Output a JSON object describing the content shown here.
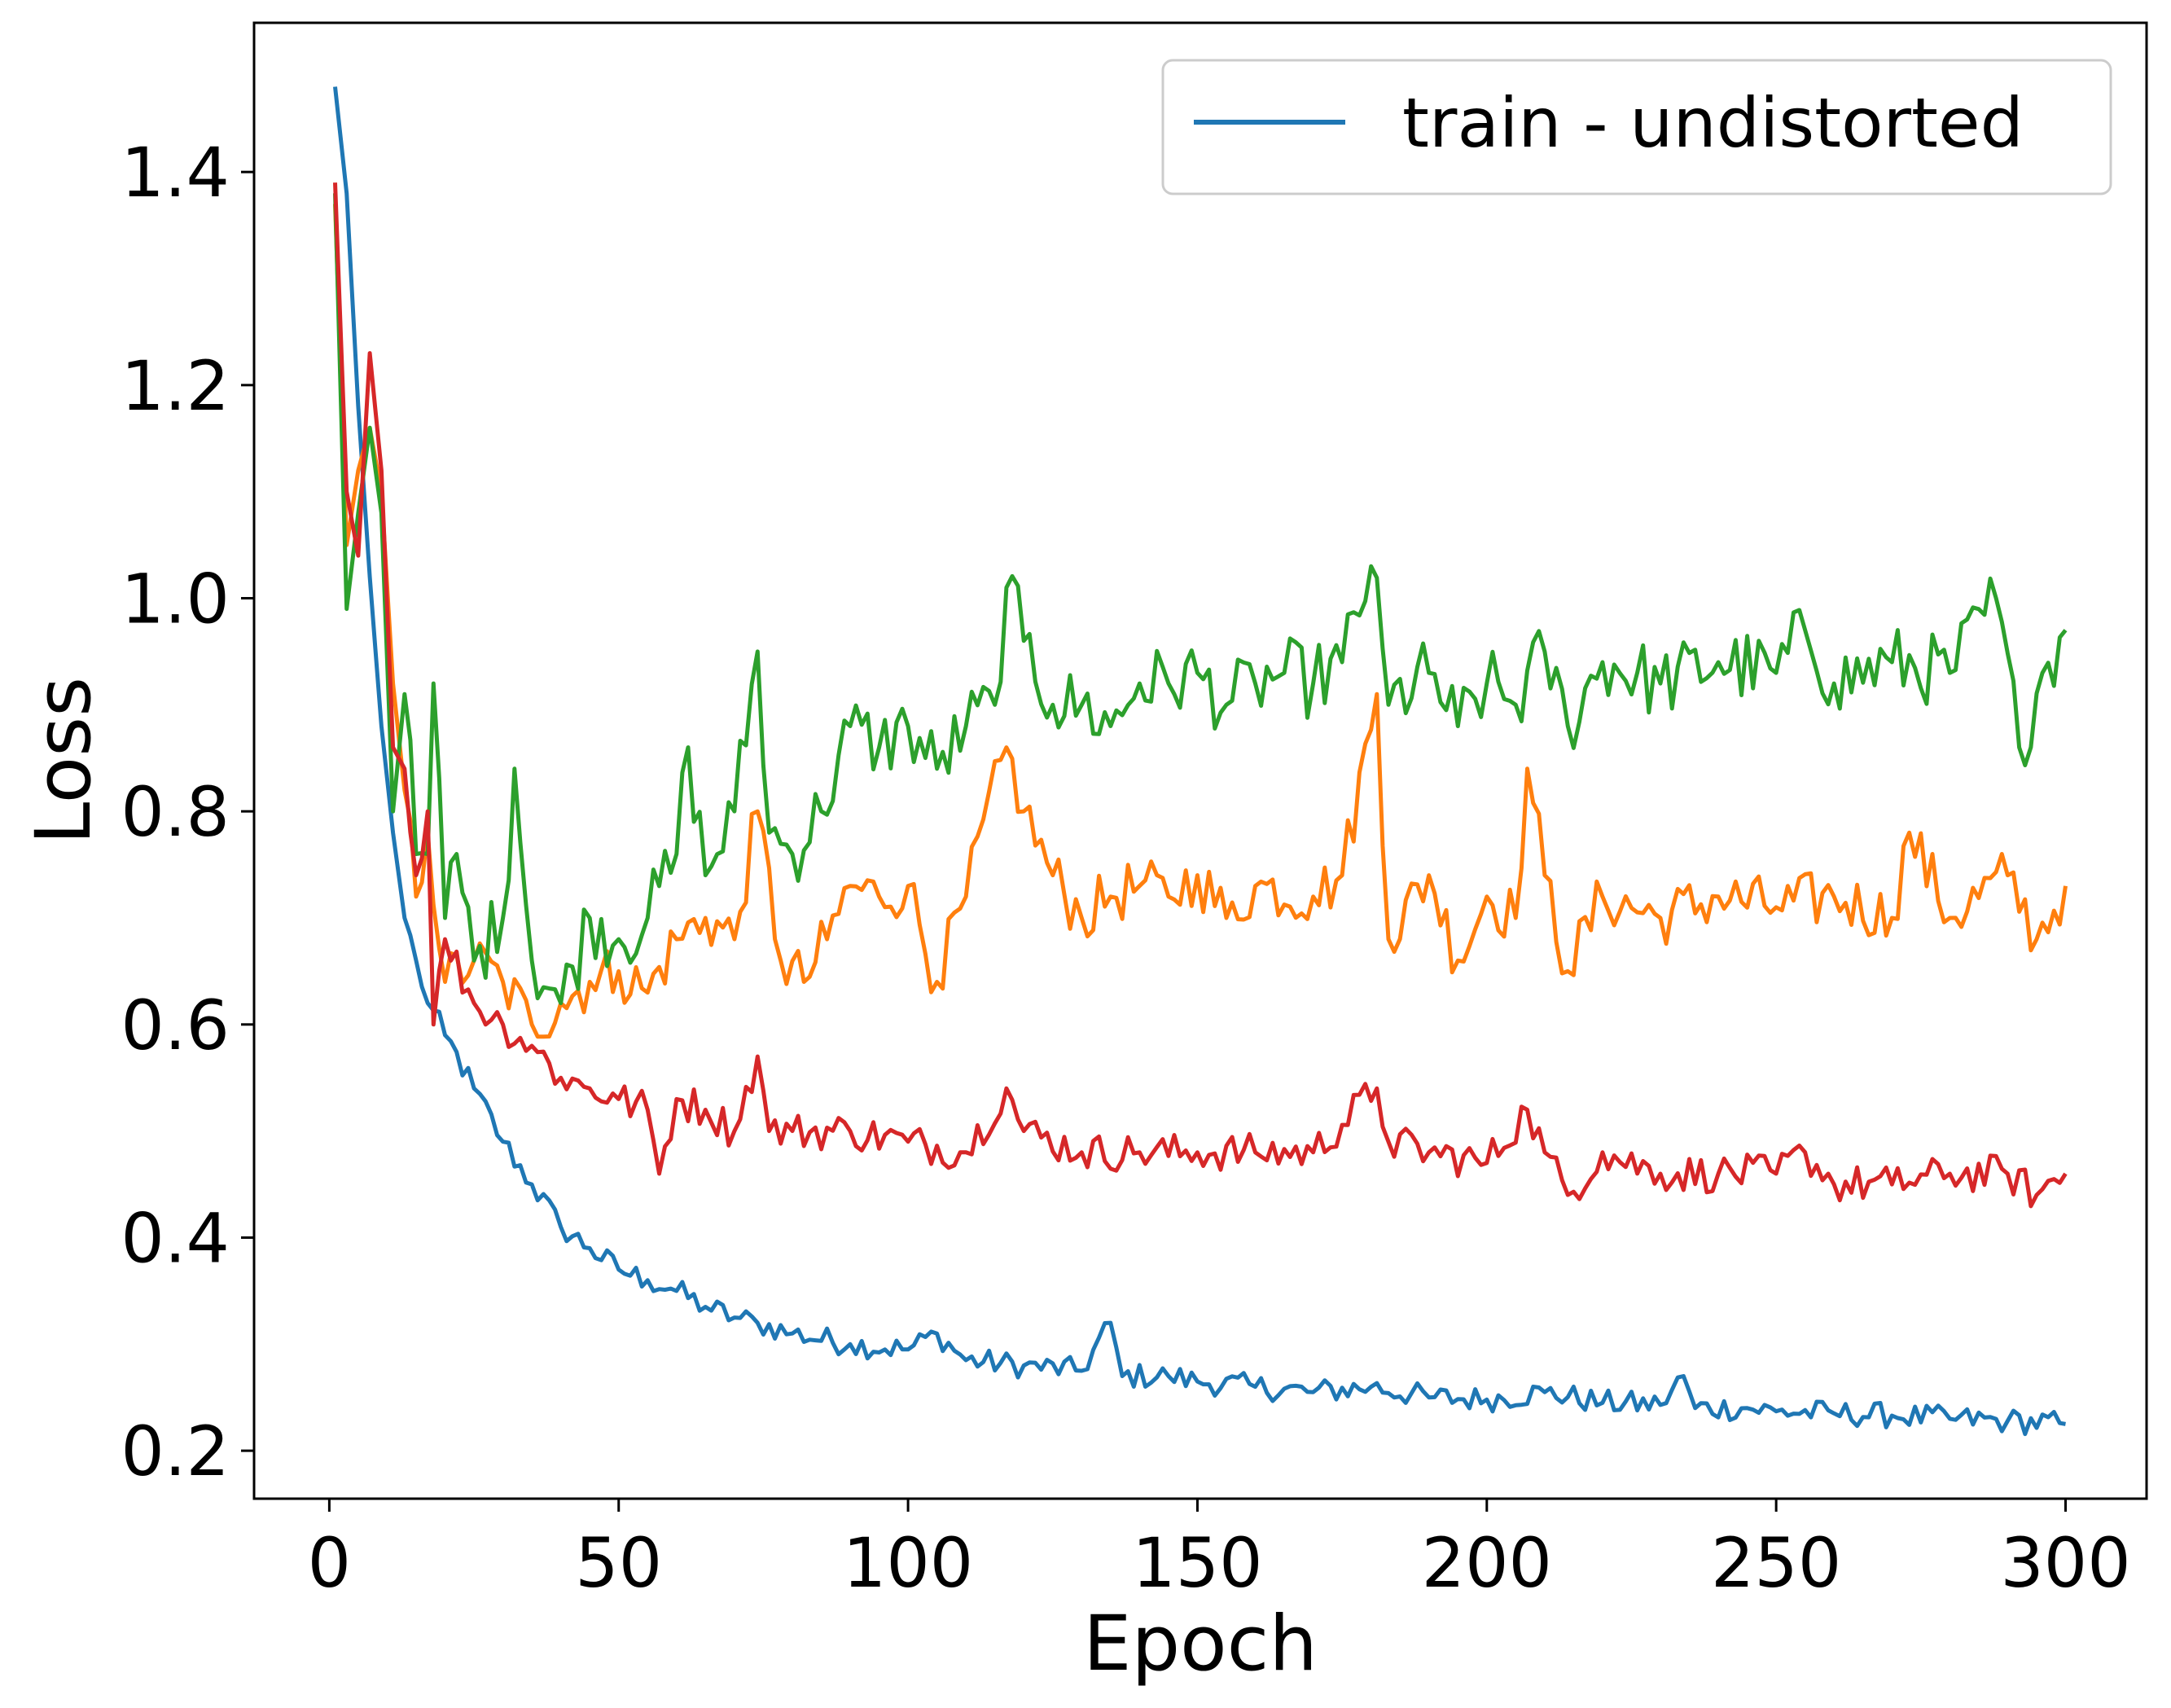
{
  "chart_data": {
    "type": "line",
    "title": "",
    "xlabel": "Epoch",
    "ylabel": "Loss",
    "xlim": [
      -13,
      314
    ],
    "ylim": [
      0.155,
      1.54
    ],
    "xticks": [
      0,
      50,
      100,
      150,
      200,
      250,
      300
    ],
    "yticks": [
      0.2,
      0.4,
      0.6,
      0.8,
      1.0,
      1.2,
      1.4
    ],
    "xtick_labels": [
      "0",
      "50",
      "100",
      "150",
      "200",
      "250",
      "300"
    ],
    "ytick_labels": [
      "0.2",
      "0.4",
      "0.6",
      "0.8",
      "1.0",
      "1.2",
      "1.4"
    ],
    "grid": false,
    "legend_position": "top-right",
    "series": [
      {
        "name": "train - undistorted",
        "color": "#1f77b4",
        "points": [
          [
            1,
            1.48
          ],
          [
            3,
            1.38
          ],
          [
            5,
            1.18
          ],
          [
            7,
            1.02
          ],
          [
            9,
            0.88
          ],
          [
            11,
            0.78
          ],
          [
            13,
            0.7
          ],
          [
            15,
            0.66
          ],
          [
            17,
            0.62
          ],
          [
            20,
            0.59
          ],
          [
            25,
            0.54
          ],
          [
            30,
            0.49
          ],
          [
            35,
            0.45
          ],
          [
            40,
            0.41
          ],
          [
            45,
            0.39
          ],
          [
            50,
            0.37
          ],
          [
            55,
            0.36
          ],
          [
            60,
            0.35
          ],
          [
            65,
            0.335
          ],
          [
            70,
            0.325
          ],
          [
            74,
            0.32
          ],
          [
            80,
            0.31
          ],
          [
            90,
            0.3
          ],
          [
            100,
            0.295
          ],
          [
            105,
            0.31
          ],
          [
            110,
            0.285
          ],
          [
            120,
            0.28
          ],
          [
            130,
            0.275
          ],
          [
            135,
            0.32
          ],
          [
            137,
            0.27
          ],
          [
            145,
            0.27
          ],
          [
            150,
            0.265
          ],
          [
            160,
            0.26
          ],
          [
            170,
            0.255
          ],
          [
            180,
            0.26
          ],
          [
            190,
            0.25
          ],
          [
            200,
            0.248
          ],
          [
            210,
            0.255
          ],
          [
            220,
            0.245
          ],
          [
            230,
            0.243
          ],
          [
            234,
            0.27
          ],
          [
            236,
            0.24
          ],
          [
            245,
            0.24
          ],
          [
            250,
            0.237
          ],
          [
            260,
            0.235
          ],
          [
            270,
            0.233
          ],
          [
            280,
            0.23
          ],
          [
            290,
            0.228
          ],
          [
            300,
            0.225
          ]
        ]
      },
      {
        "name": "",
        "color": "#ff7f0e",
        "points": [
          [
            1,
            1.37
          ],
          [
            3,
            1.05
          ],
          [
            5,
            1.12
          ],
          [
            7,
            1.16
          ],
          [
            9,
            1.1
          ],
          [
            11,
            0.92
          ],
          [
            13,
            0.82
          ],
          [
            15,
            0.72
          ],
          [
            17,
            0.78
          ],
          [
            20,
            0.64
          ],
          [
            25,
            0.66
          ],
          [
            30,
            0.64
          ],
          [
            35,
            0.6
          ],
          [
            40,
            0.62
          ],
          [
            45,
            0.64
          ],
          [
            50,
            0.65
          ],
          [
            55,
            0.63
          ],
          [
            60,
            0.68
          ],
          [
            65,
            0.7
          ],
          [
            70,
            0.68
          ],
          [
            74,
            0.8
          ],
          [
            78,
            0.66
          ],
          [
            82,
            0.64
          ],
          [
            86,
            0.68
          ],
          [
            90,
            0.73
          ],
          [
            95,
            0.72
          ],
          [
            100,
            0.73
          ],
          [
            105,
            0.64
          ],
          [
            110,
            0.72
          ],
          [
            117,
            0.86
          ],
          [
            120,
            0.8
          ],
          [
            125,
            0.74
          ],
          [
            130,
            0.7
          ],
          [
            135,
            0.72
          ],
          [
            140,
            0.73
          ],
          [
            145,
            0.72
          ],
          [
            150,
            0.74
          ],
          [
            155,
            0.7
          ],
          [
            160,
            0.73
          ],
          [
            170,
            0.72
          ],
          [
            175,
            0.74
          ],
          [
            181,
            0.91
          ],
          [
            183,
            0.68
          ],
          [
            190,
            0.74
          ],
          [
            195,
            0.66
          ],
          [
            200,
            0.72
          ],
          [
            205,
            0.7
          ],
          [
            207,
            0.84
          ],
          [
            210,
            0.74
          ],
          [
            214,
            0.65
          ],
          [
            220,
            0.72
          ],
          [
            230,
            0.7
          ],
          [
            240,
            0.72
          ],
          [
            250,
            0.71
          ],
          [
            260,
            0.72
          ],
          [
            270,
            0.7
          ],
          [
            273,
            0.78
          ],
          [
            280,
            0.7
          ],
          [
            290,
            0.74
          ],
          [
            295,
            0.68
          ],
          [
            300,
            0.73
          ]
        ]
      },
      {
        "name": "",
        "color": "#2ca02c",
        "points": [
          [
            1,
            1.38
          ],
          [
            3,
            0.99
          ],
          [
            5,
            1.08
          ],
          [
            7,
            1.16
          ],
          [
            9,
            1.08
          ],
          [
            11,
            0.8
          ],
          [
            13,
            0.91
          ],
          [
            15,
            0.76
          ],
          [
            17,
            0.76
          ],
          [
            18,
            0.92
          ],
          [
            20,
            0.7
          ],
          [
            22,
            0.76
          ],
          [
            25,
            0.66
          ],
          [
            30,
            0.7
          ],
          [
            32,
            0.84
          ],
          [
            35,
            0.66
          ],
          [
            40,
            0.62
          ],
          [
            45,
            0.7
          ],
          [
            50,
            0.68
          ],
          [
            55,
            0.7
          ],
          [
            60,
            0.76
          ],
          [
            62,
            0.86
          ],
          [
            65,
            0.74
          ],
          [
            70,
            0.8
          ],
          [
            74,
            0.95
          ],
          [
            76,
            0.78
          ],
          [
            80,
            0.76
          ],
          [
            85,
            0.8
          ],
          [
            90,
            0.88
          ],
          [
            95,
            0.86
          ],
          [
            100,
            0.88
          ],
          [
            105,
            0.84
          ],
          [
            110,
            0.88
          ],
          [
            115,
            0.9
          ],
          [
            117,
            1.01
          ],
          [
            120,
            0.96
          ],
          [
            125,
            0.9
          ],
          [
            130,
            0.9
          ],
          [
            135,
            0.88
          ],
          [
            140,
            0.92
          ],
          [
            145,
            0.92
          ],
          [
            150,
            0.93
          ],
          [
            155,
            0.9
          ],
          [
            160,
            0.92
          ],
          [
            165,
            0.93
          ],
          [
            170,
            0.92
          ],
          [
            175,
            0.94
          ],
          [
            180,
            1.03
          ],
          [
            183,
            0.9
          ],
          [
            190,
            0.93
          ],
          [
            195,
            0.88
          ],
          [
            200,
            0.92
          ],
          [
            205,
            0.9
          ],
          [
            210,
            0.95
          ],
          [
            214,
            0.88
          ],
          [
            220,
            0.94
          ],
          [
            230,
            0.92
          ],
          [
            240,
            0.94
          ],
          [
            250,
            0.93
          ],
          [
            255,
            0.97
          ],
          [
            260,
            0.92
          ],
          [
            270,
            0.94
          ],
          [
            280,
            0.93
          ],
          [
            288,
            1.0
          ],
          [
            292,
            0.86
          ],
          [
            296,
            0.93
          ],
          [
            300,
            0.97
          ]
        ]
      },
      {
        "name": "",
        "color": "#d62728",
        "points": [
          [
            1,
            1.39
          ],
          [
            3,
            1.1
          ],
          [
            5,
            1.04
          ],
          [
            7,
            1.23
          ],
          [
            9,
            1.12
          ],
          [
            11,
            0.86
          ],
          [
            13,
            0.84
          ],
          [
            15,
            0.74
          ],
          [
            17,
            0.8
          ],
          [
            18,
            0.6
          ],
          [
            20,
            0.68
          ],
          [
            25,
            0.62
          ],
          [
            30,
            0.6
          ],
          [
            35,
            0.58
          ],
          [
            40,
            0.55
          ],
          [
            45,
            0.54
          ],
          [
            50,
            0.53
          ],
          [
            55,
            0.52
          ],
          [
            57,
            0.46
          ],
          [
            60,
            0.53
          ],
          [
            65,
            0.52
          ],
          [
            70,
            0.5
          ],
          [
            74,
            0.57
          ],
          [
            76,
            0.5
          ],
          [
            80,
            0.5
          ],
          [
            90,
            0.5
          ],
          [
            100,
            0.49
          ],
          [
            110,
            0.48
          ],
          [
            117,
            0.54
          ],
          [
            120,
            0.5
          ],
          [
            130,
            0.48
          ],
          [
            140,
            0.48
          ],
          [
            150,
            0.48
          ],
          [
            160,
            0.48
          ],
          [
            170,
            0.48
          ],
          [
            181,
            0.54
          ],
          [
            183,
            0.49
          ],
          [
            190,
            0.48
          ],
          [
            200,
            0.47
          ],
          [
            207,
            0.52
          ],
          [
            210,
            0.48
          ],
          [
            214,
            0.44
          ],
          [
            220,
            0.48
          ],
          [
            230,
            0.46
          ],
          [
            240,
            0.46
          ],
          [
            250,
            0.46
          ],
          [
            255,
            0.48
          ],
          [
            260,
            0.45
          ],
          [
            270,
            0.45
          ],
          [
            280,
            0.46
          ],
          [
            290,
            0.46
          ],
          [
            295,
            0.44
          ],
          [
            300,
            0.46
          ]
        ]
      }
    ],
    "legend": [
      {
        "label": "train - undistorted",
        "color": "#1f77b4"
      }
    ]
  }
}
